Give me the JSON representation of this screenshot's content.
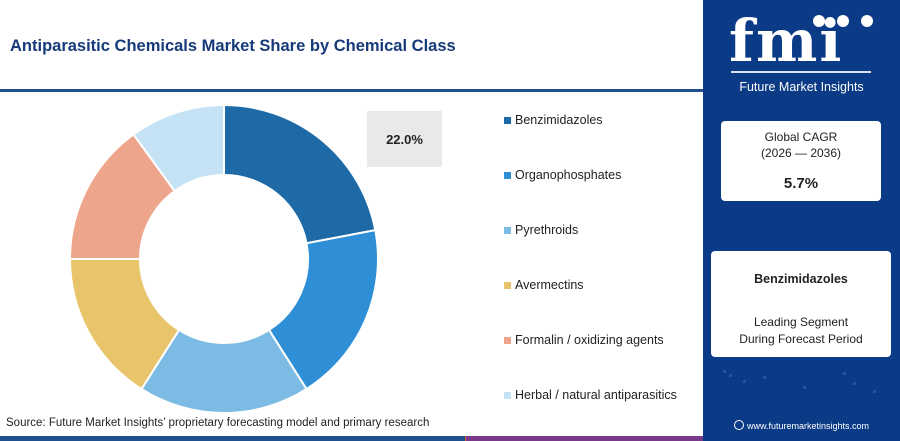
{
  "title": "Antiparasitic Chemicals Market Share by Chemical Class",
  "chart_data": {
    "type": "pie",
    "donut": true,
    "title": "Antiparasitic Chemicals Market Share by Chemical Class",
    "categories": [
      "Benzimidazoles",
      "Organophosphates",
      "Pyrethroids",
      "Avermectins",
      "Formalin / oxidizing agents",
      "Herbal / natural antiparasitics"
    ],
    "values": [
      22.0,
      19.0,
      18.0,
      16.0,
      15.0,
      10.0
    ],
    "colors": [
      "#1e6aa7",
      "#2e8fd6",
      "#7cbbe3",
      "#e8c46a",
      "#eda58b",
      "#c5e3f5"
    ],
    "highlight_label": "22.0%",
    "legend_position": "right"
  },
  "source_text": "Source: Future Market Insights’ proprietary forecasting model and primary research",
  "bottom_bar_colors": [
    "#1f4f8f",
    "#d95f2b",
    "#7a3a8c"
  ],
  "brand": {
    "logo": "fmi",
    "name": "Future Market Insights",
    "website": "www.futuremarketinsights.com"
  },
  "cagr_card": {
    "label_line1": "Global CAGR",
    "label_line2": "(2026 — 2036)",
    "value": "5.7%"
  },
  "segment_card": {
    "segment": "Benzimidazoles",
    "desc_line1": "Leading Segment",
    "desc_line2": "During Forecast Period"
  },
  "colors": {
    "panel": "#0b3a86",
    "title": "#163a7a"
  }
}
